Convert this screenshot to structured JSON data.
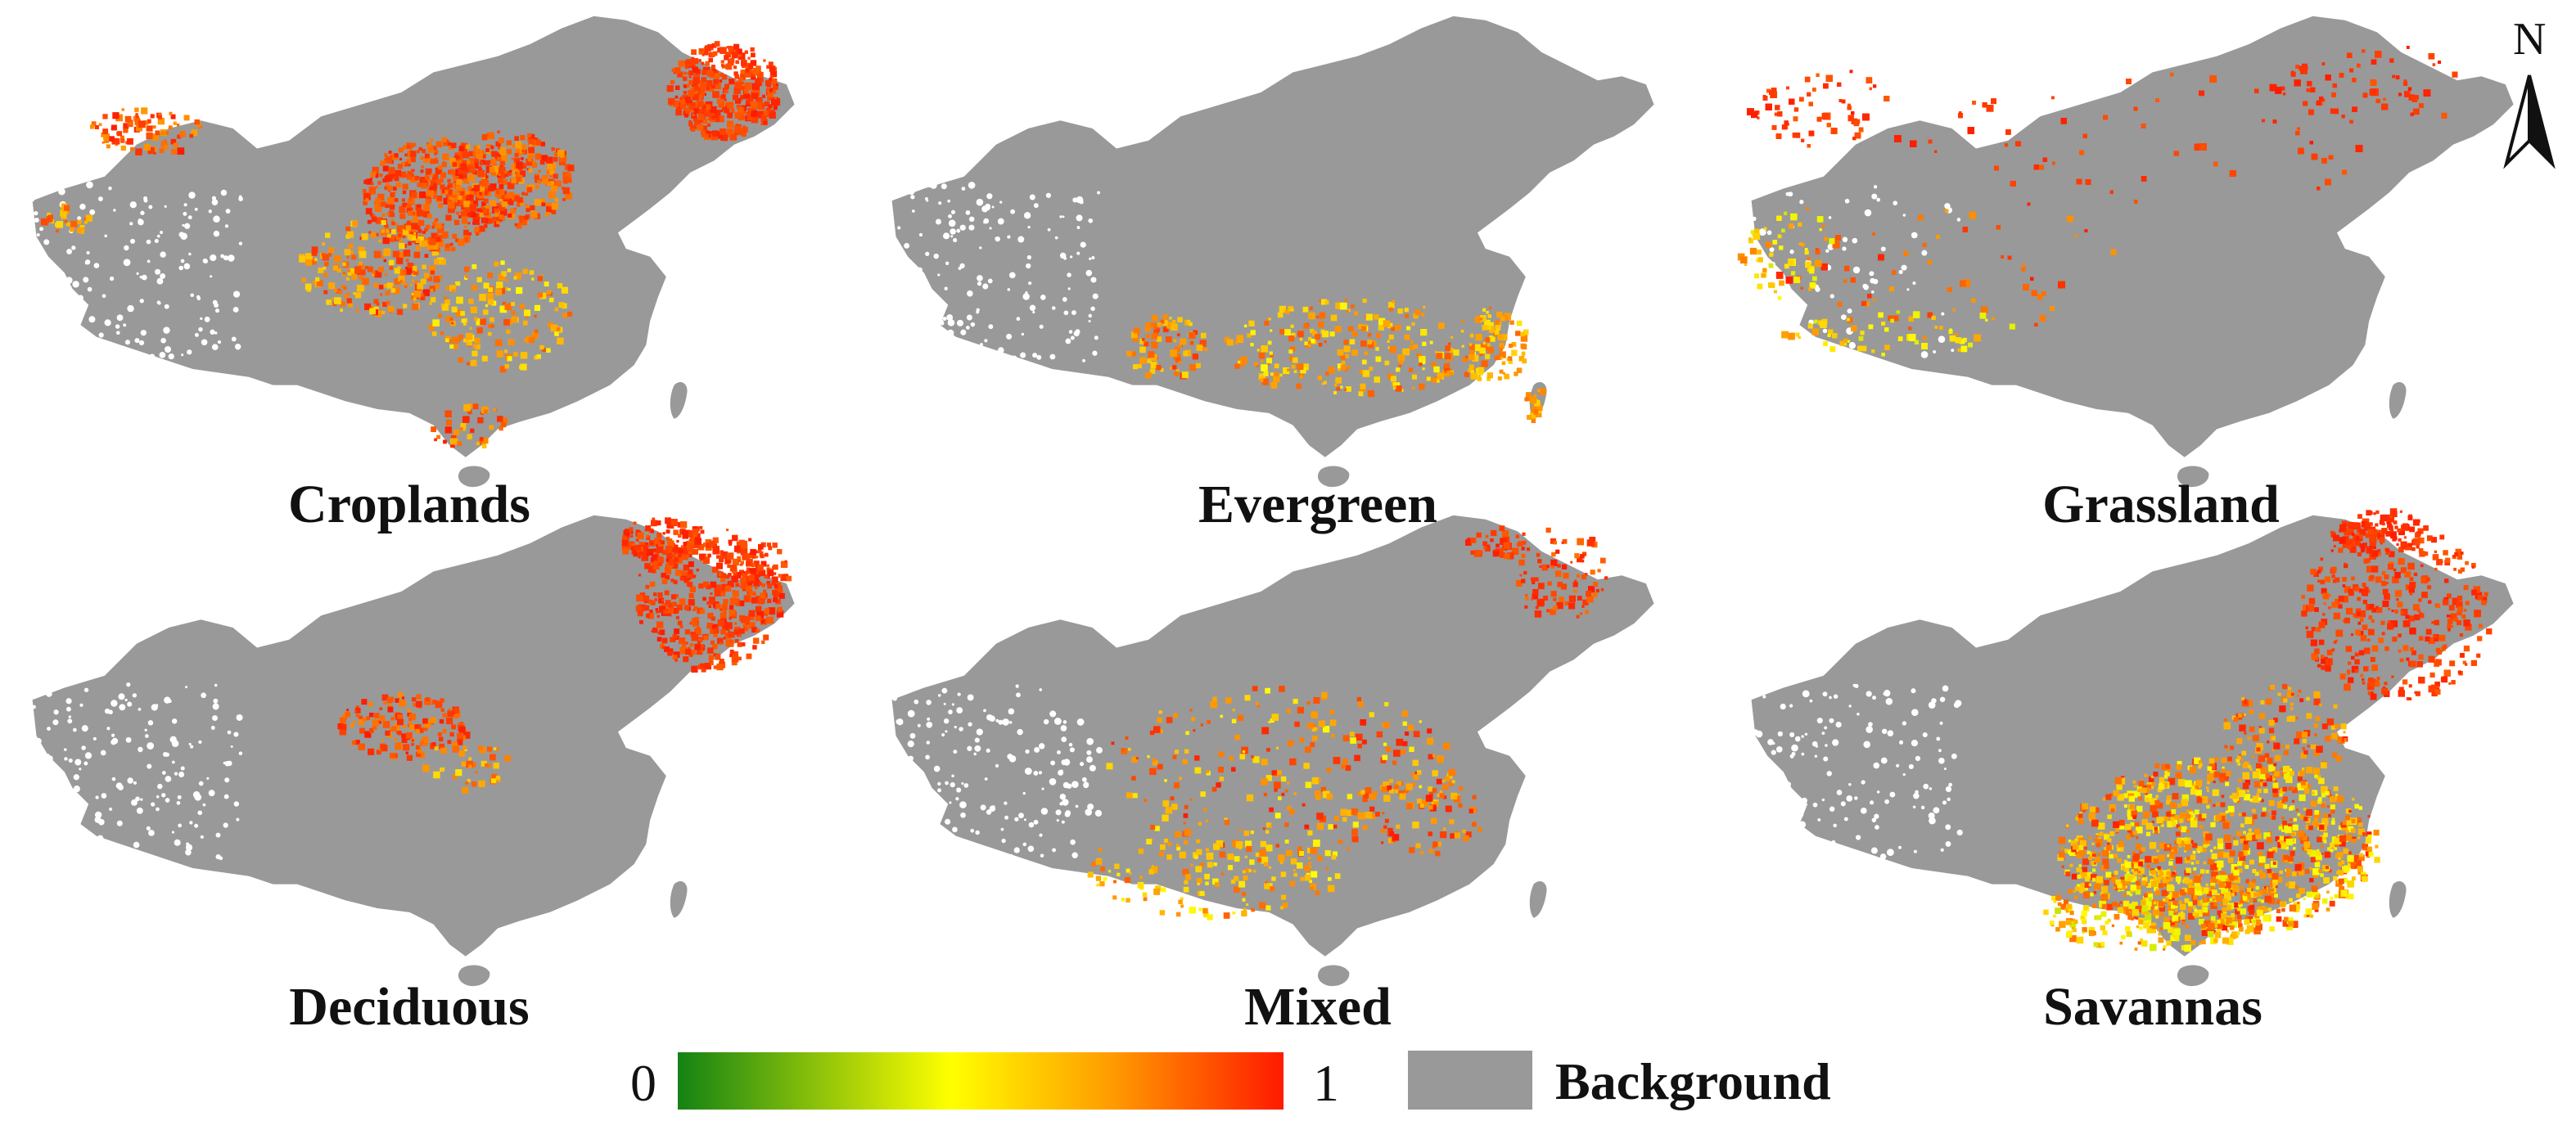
{
  "panels": [
    {
      "id": "croplands",
      "label": "Croplands"
    },
    {
      "id": "evergreen",
      "label": "Evergreen"
    },
    {
      "id": "grassland",
      "label": "Grassland"
    },
    {
      "id": "deciduous",
      "label": "Deciduous"
    },
    {
      "id": "mixed",
      "label": "Mixed"
    },
    {
      "id": "savannas",
      "label": "Savannas"
    }
  ],
  "legend": {
    "min_label": "0",
    "max_label": "1",
    "background_label": "Background",
    "colors": {
      "low": "#1a8a1a",
      "mid": "#ffff00",
      "high": "#ff1a00",
      "background": "#999999"
    }
  },
  "north_arrow": {
    "letter": "N"
  }
}
